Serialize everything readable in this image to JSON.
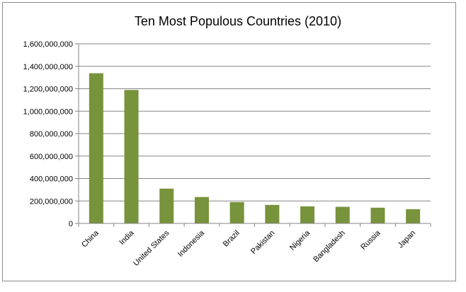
{
  "chart_data": {
    "type": "bar",
    "title": "Ten Most Populous Countries (2010)",
    "xlabel": "",
    "ylabel": "",
    "categories": [
      "China",
      "India",
      "United States",
      "Indonesia",
      "Brazil",
      "Pakistan",
      "Nigeria",
      "Bangladesh",
      "Russia",
      "Japan"
    ],
    "values": [
      1338000000,
      1189000000,
      310000000,
      235000000,
      190000000,
      165000000,
      152000000,
      148000000,
      140000000,
      127000000
    ],
    "ylim": [
      0,
      1600000000
    ],
    "yticks": [
      0,
      200000000,
      400000000,
      600000000,
      800000000,
      1000000000,
      1200000000,
      1400000000,
      1600000000
    ],
    "ytick_labels": [
      "0",
      "200,000,000",
      "400,000,000",
      "600,000,000",
      "800,000,000",
      "1,000,000,000",
      "1,200,000,000",
      "1,400,000,000",
      "1,600,000,000"
    ],
    "grid": true,
    "legend": "none",
    "bar_color": "#77933c",
    "gridline_color": "#868686"
  }
}
